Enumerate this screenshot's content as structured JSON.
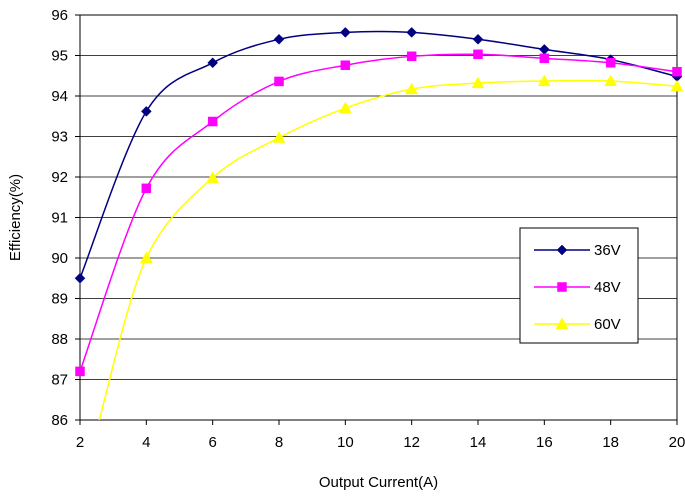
{
  "chart_data": {
    "type": "line",
    "title": "",
    "xlabel": "Output Current(A)",
    "ylabel": "Efficiency(%)",
    "xlim": [
      2,
      20
    ],
    "ylim": [
      86,
      96
    ],
    "xticks": [
      2,
      4,
      6,
      8,
      10,
      12,
      14,
      16,
      18,
      20
    ],
    "yticks": [
      86,
      87,
      88,
      89,
      90,
      91,
      92,
      93,
      94,
      95,
      96
    ],
    "grid": "horizontal",
    "legend_position": "right",
    "series": [
      {
        "name": "36V",
        "color": "#000080",
        "marker": "diamond",
        "x": [
          2,
          4,
          6,
          8,
          10,
          12,
          14,
          16,
          18,
          20
        ],
        "y": [
          89.5,
          93.62,
          94.82,
          95.4,
          95.57,
          95.57,
          95.4,
          95.15,
          94.9,
          94.48
        ]
      },
      {
        "name": "48V",
        "color": "#FF00FF",
        "marker": "square",
        "x": [
          2,
          4,
          6,
          8,
          10,
          12,
          14,
          16,
          18,
          20
        ],
        "y": [
          87.2,
          91.72,
          93.37,
          94.36,
          94.76,
          94.98,
          95.03,
          94.93,
          94.82,
          94.6
        ]
      },
      {
        "name": "60V",
        "color": "#FFFF00",
        "marker": "triangle",
        "x": [
          4,
          6,
          8,
          10,
          12,
          14,
          16,
          18,
          20
        ],
        "y": [
          90.0,
          91.98,
          92.97,
          93.7,
          94.17,
          94.32,
          94.37,
          94.37,
          94.24
        ]
      }
    ]
  }
}
